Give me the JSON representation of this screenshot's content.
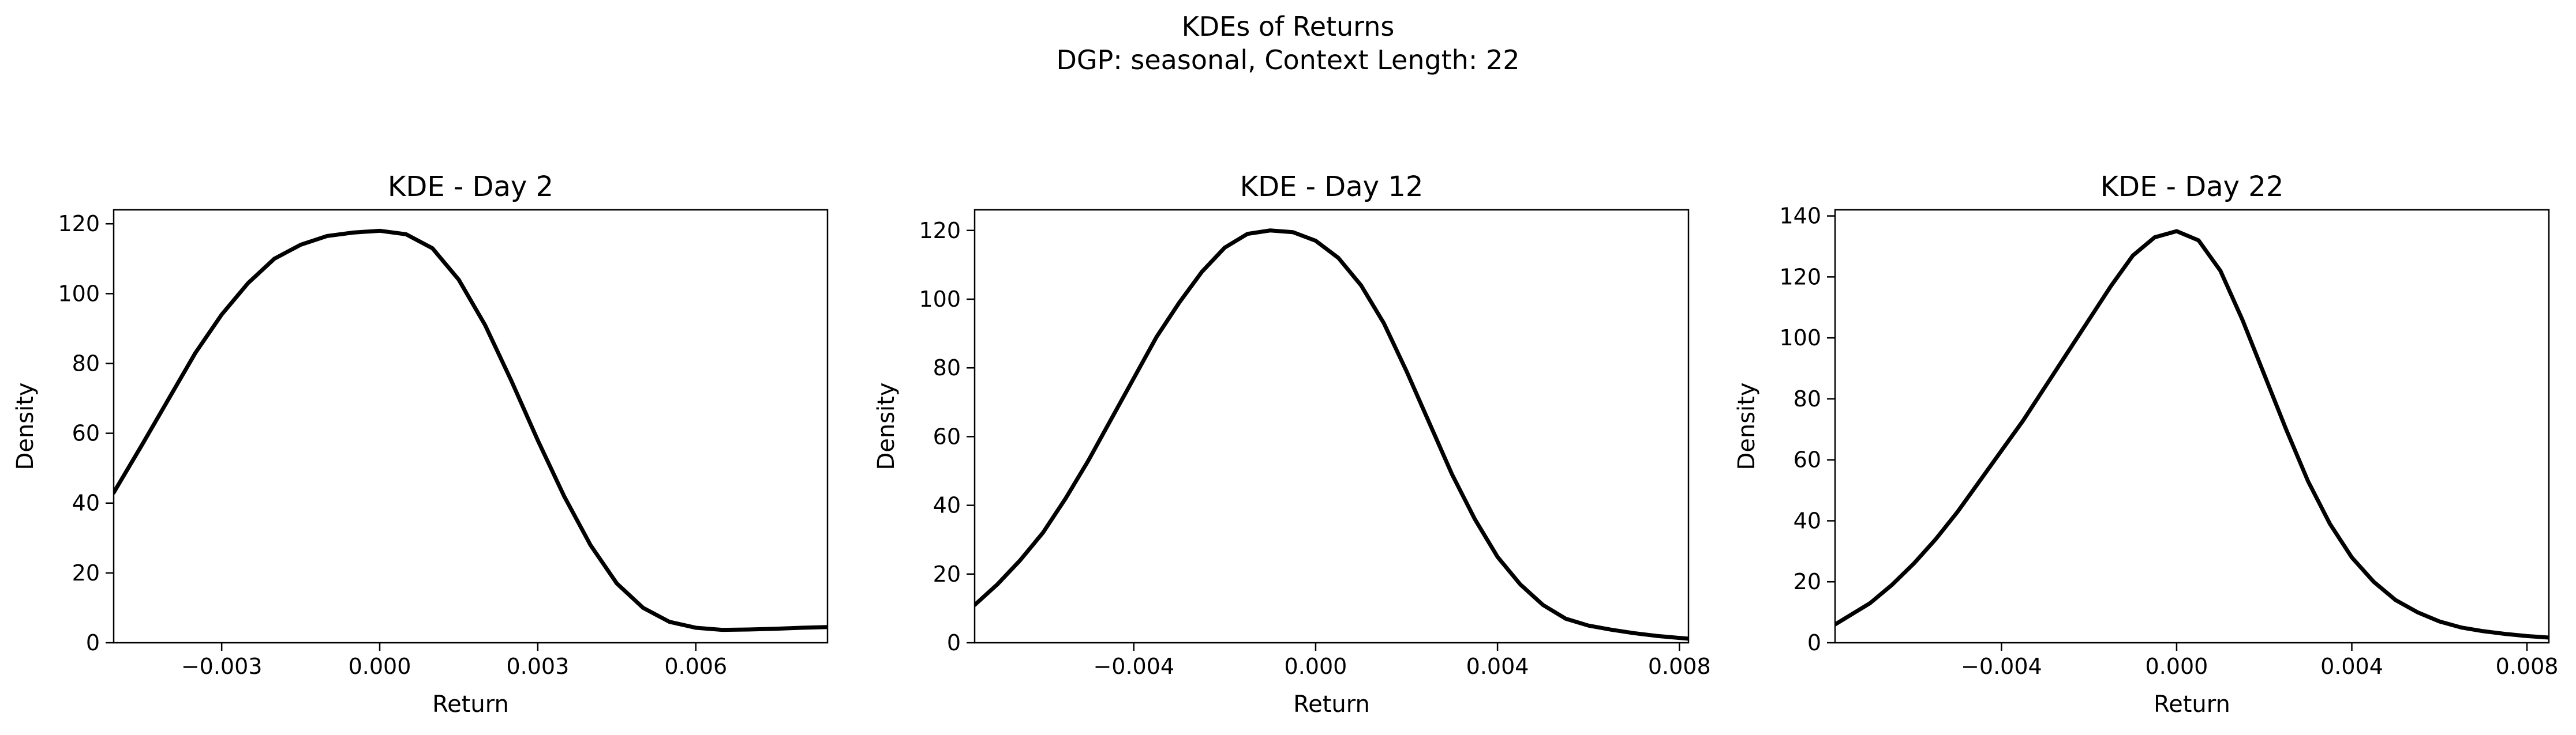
{
  "figure": {
    "title_line1": "KDEs of Returns",
    "title_line2": "DGP: seasonal, Context Length: 22"
  },
  "line_color": "#000000",
  "chart_data": [
    {
      "type": "line",
      "title": "KDE - Day 2",
      "xlabel": "Return",
      "ylabel": "Density",
      "xlim": [
        -0.00505,
        0.0085
      ],
      "ylim": [
        0,
        124
      ],
      "xticks": [
        -0.003,
        0.0,
        0.003,
        0.006
      ],
      "xtick_labels": [
        "−0.003",
        "0.000",
        "0.003",
        "0.006"
      ],
      "yticks": [
        0,
        20,
        40,
        60,
        80,
        100,
        120
      ],
      "ytick_labels": [
        "0",
        "20",
        "40",
        "60",
        "80",
        "100",
        "120"
      ],
      "grid": false,
      "series": [
        {
          "x": [
            -0.00505,
            -0.0045,
            -0.004,
            -0.0035,
            -0.003,
            -0.0025,
            -0.002,
            -0.0015,
            -0.001,
            -0.0005,
            0.0,
            0.0005,
            0.001,
            0.0015,
            0.002,
            0.0025,
            0.003,
            0.0035,
            0.004,
            0.0045,
            0.005,
            0.0055,
            0.006,
            0.0065,
            0.007,
            0.0075,
            0.008,
            0.0085
          ],
          "y": [
            43,
            57,
            70,
            83,
            94,
            103,
            110,
            114,
            116.5,
            117.5,
            118,
            117,
            113,
            104,
            91,
            75,
            58,
            42,
            28,
            17,
            10,
            6,
            4.3,
            3.7,
            3.8,
            4.0,
            4.3,
            4.5
          ]
        }
      ]
    },
    {
      "type": "line",
      "title": "KDE - Day 12",
      "xlabel": "Return",
      "ylabel": "Density",
      "xlim": [
        -0.0075,
        0.0082
      ],
      "ylim": [
        0,
        126
      ],
      "xticks": [
        -0.004,
        0.0,
        0.004,
        0.008
      ],
      "xtick_labels": [
        "−0.004",
        "0.000",
        "0.004",
        "0.008"
      ],
      "yticks": [
        0,
        20,
        40,
        60,
        80,
        100,
        120
      ],
      "ytick_labels": [
        "0",
        "20",
        "40",
        "60",
        "80",
        "100",
        "120"
      ],
      "grid": false,
      "series": [
        {
          "x": [
            -0.0075,
            -0.007,
            -0.0065,
            -0.006,
            -0.0055,
            -0.005,
            -0.0045,
            -0.004,
            -0.0035,
            -0.003,
            -0.0025,
            -0.002,
            -0.0015,
            -0.001,
            -0.0005,
            0.0,
            0.0005,
            0.001,
            0.0015,
            0.002,
            0.0025,
            0.003,
            0.0035,
            0.004,
            0.0045,
            0.005,
            0.0055,
            0.006,
            0.0065,
            0.007,
            0.0075,
            0.008,
            0.0082
          ],
          "y": [
            11,
            17,
            24,
            32,
            42,
            53,
            65,
            77,
            89,
            99,
            108,
            115,
            119,
            120,
            119.5,
            117,
            112,
            104,
            93,
            79,
            64,
            49,
            36,
            25,
            17,
            11,
            7,
            5,
            3.8,
            2.8,
            2.0,
            1.4,
            1.2
          ]
        }
      ]
    },
    {
      "type": "line",
      "title": "KDE - Day 22",
      "xlabel": "Return",
      "ylabel": "Density",
      "xlim": [
        -0.0078,
        0.0085
      ],
      "ylim": [
        0,
        142
      ],
      "xticks": [
        -0.004,
        0.0,
        0.004,
        0.008
      ],
      "xtick_labels": [
        "−0.004",
        "0.000",
        "0.004",
        "0.008"
      ],
      "yticks": [
        0,
        20,
        40,
        60,
        80,
        100,
        120,
        140
      ],
      "ytick_labels": [
        "0",
        "20",
        "40",
        "60",
        "80",
        "100",
        "120",
        "140"
      ],
      "grid": false,
      "series": [
        {
          "x": [
            -0.0078,
            -0.007,
            -0.0065,
            -0.006,
            -0.0055,
            -0.005,
            -0.0045,
            -0.004,
            -0.0035,
            -0.003,
            -0.0025,
            -0.002,
            -0.0015,
            -0.001,
            -0.0005,
            0.0,
            0.0005,
            0.001,
            0.0015,
            0.002,
            0.0025,
            0.003,
            0.0035,
            0.004,
            0.0045,
            0.005,
            0.0055,
            0.006,
            0.0065,
            0.007,
            0.0075,
            0.008,
            0.0085
          ],
          "y": [
            6,
            13,
            19,
            26,
            34,
            43,
            53,
            63,
            73,
            84,
            95,
            106,
            117,
            127,
            133,
            135,
            132,
            122,
            106,
            88,
            70,
            53,
            39,
            28,
            20,
            14,
            10,
            7,
            5,
            3.8,
            2.9,
            2.2,
            1.7
          ]
        }
      ]
    }
  ]
}
